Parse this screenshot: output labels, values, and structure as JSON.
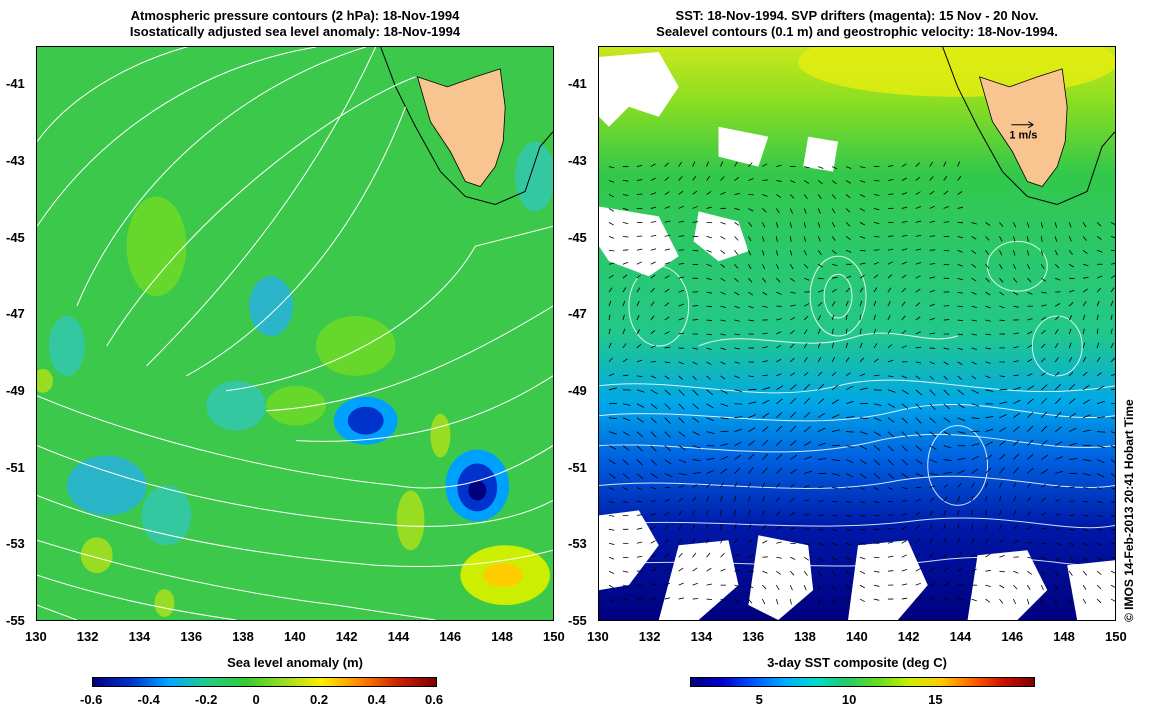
{
  "left_panel": {
    "title_line1": "Atmospheric pressure contours (2 hPa): 18-Nov-1994",
    "title_line2": "Isostatically adjusted sea level anomaly: 18-Nov-1994",
    "colorbar": {
      "title": "Sea level anomaly (m)",
      "ticks": [
        "-0.6",
        "-0.4",
        "-0.2",
        "0",
        "0.2",
        "0.4",
        "0.6"
      ],
      "colors": [
        "#00007f",
        "#0033cc",
        "#00aaff",
        "#22cc88",
        "#33cc33",
        "#99dd22",
        "#ffee00",
        "#ff8800",
        "#cc2200",
        "#7f0000"
      ]
    }
  },
  "right_panel": {
    "title_line1": "SST: 18-Nov-1994. SVP drifters (magenta): 15 Nov - 20 Nov.",
    "title_line2": "Sealevel contours (0.1 m) and geostrophic velocity: 18-Nov-1994.",
    "velocity_scale_label": "1 m/s",
    "colorbar": {
      "title": "3-day SST composite (deg C)",
      "ticks": [
        "5",
        "10",
        "15"
      ],
      "colors": [
        "#00007f",
        "#0000cc",
        "#0055ff",
        "#00aaff",
        "#00ddcc",
        "#22cc66",
        "#66dd22",
        "#ccee00",
        "#ffcc00",
        "#ff6600",
        "#cc1100",
        "#7f0000"
      ]
    }
  },
  "axes": {
    "x_ticks": [
      "130",
      "132",
      "134",
      "136",
      "138",
      "140",
      "142",
      "144",
      "146",
      "148",
      "150"
    ],
    "y_ticks": [
      "-41",
      "-43",
      "-45",
      "-47",
      "-49",
      "-51",
      "-53",
      "-55"
    ]
  },
  "credit": "© IMOS 14-Feb-2013 20:41 Hobart Time",
  "colors": {
    "land": "#f8c490",
    "ocean_green": "#3cc84a",
    "contour": "#ffffff"
  }
}
